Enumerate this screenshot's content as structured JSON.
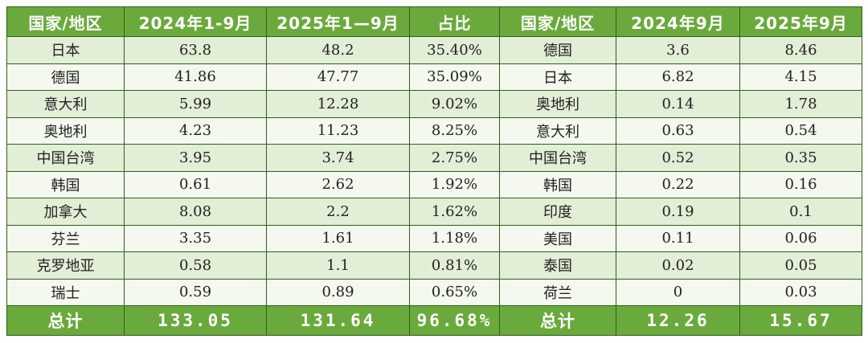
{
  "headers": [
    "国家/地区",
    "2024年1-9月",
    "2025年1—9月",
    "占比",
    "国家/地区",
    "2024年9月",
    "2025年9月"
  ],
  "rows": [
    [
      "日本",
      "63.8",
      "48.2",
      "35.40%",
      "德国",
      "3.6",
      "8.46"
    ],
    [
      "德国",
      "41.86",
      "47.77",
      "35.09%",
      "日本",
      "6.82",
      "4.15"
    ],
    [
      "意大利",
      "5.99",
      "12.28",
      "9.02%",
      "奥地利",
      "0.14",
      "1.78"
    ],
    [
      "奥地利",
      "4.23",
      "11.23",
      "8.25%",
      "意大利",
      "0.63",
      "0.54"
    ],
    [
      "中国台湾",
      "3.95",
      "3.74",
      "2.75%",
      "中国台湾",
      "0.52",
      "0.35"
    ],
    [
      "韩国",
      "0.61",
      "2.62",
      "1.92%",
      "韩国",
      "0.22",
      "0.16"
    ],
    [
      "加拿大",
      "8.08",
      "2.2",
      "1.62%",
      "印度",
      "0.19",
      "0.1"
    ],
    [
      "芬兰",
      "3.35",
      "1.61",
      "1.18%",
      "美国",
      "0.11",
      "0.06"
    ],
    [
      "克罗地亚",
      "0.58",
      "1.1",
      "0.81%",
      "泰国",
      "0.02",
      "0.05"
    ],
    [
      "瑞士",
      "0.59",
      "0.89",
      "0.65%",
      "荷兰",
      "0",
      "0.03"
    ]
  ],
  "totals": [
    "总计",
    "133.05",
    "131.64",
    "96.68%",
    "总计",
    "12.26",
    "15.67"
  ],
  "colors": {
    "header_bg": "#6aaa3c",
    "row_odd_bg": "#e2eed6",
    "row_even_bg": "#f4f8ee",
    "border": "#2f5e1c"
  }
}
